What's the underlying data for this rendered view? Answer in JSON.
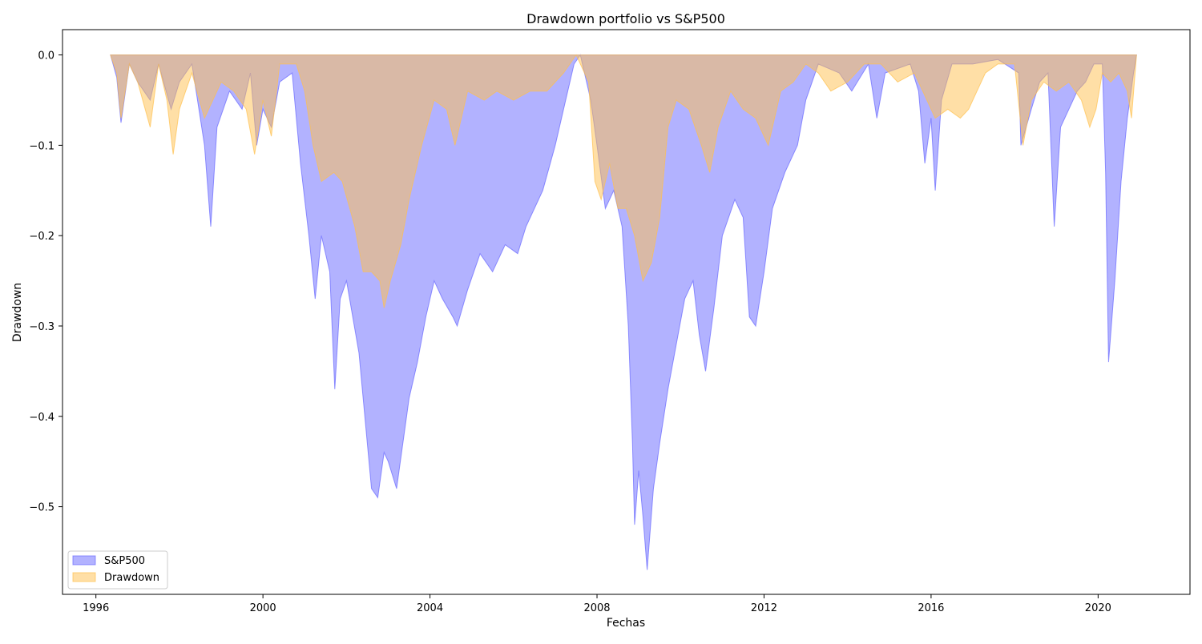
{
  "chart_data": {
    "type": "area",
    "title": "Drawdown portfolio vs S&P500",
    "xlabel": "Fechas",
    "ylabel": "Drawdown",
    "xlim": [
      1995.2,
      2022.2
    ],
    "ylim": [
      -0.597,
      0.028
    ],
    "x_ticks": [
      1996,
      2000,
      2004,
      2008,
      2012,
      2016,
      2020
    ],
    "x_tick_labels": [
      "1996",
      "2000",
      "2004",
      "2008",
      "2012",
      "2016",
      "2020"
    ],
    "y_ticks": [
      0.0,
      -0.1,
      -0.2,
      -0.3,
      -0.4,
      -0.5
    ],
    "y_tick_labels": [
      "0.0",
      "−0.1",
      "−0.2",
      "−0.3",
      "−0.4",
      "−0.5"
    ],
    "grid": false,
    "legend_position": "lower-left",
    "series": [
      {
        "name": "S&P500",
        "color": "#6666ff",
        "points": [
          [
            1996.35,
            0.0
          ],
          [
            1996.5,
            -0.025
          ],
          [
            1996.6,
            -0.075
          ],
          [
            1996.8,
            -0.01
          ],
          [
            1997.0,
            -0.03
          ],
          [
            1997.3,
            -0.05
          ],
          [
            1997.5,
            -0.01
          ],
          [
            1997.8,
            -0.06
          ],
          [
            1998.0,
            -0.03
          ],
          [
            1998.3,
            -0.01
          ],
          [
            1998.6,
            -0.1
          ],
          [
            1998.75,
            -0.19
          ],
          [
            1998.9,
            -0.08
          ],
          [
            1999.2,
            -0.04
          ],
          [
            1999.5,
            -0.06
          ],
          [
            1999.7,
            -0.02
          ],
          [
            1999.85,
            -0.1
          ],
          [
            2000.0,
            -0.06
          ],
          [
            2000.2,
            -0.08
          ],
          [
            2000.4,
            -0.03
          ],
          [
            2000.7,
            -0.02
          ],
          [
            2000.9,
            -0.12
          ],
          [
            2001.1,
            -0.2
          ],
          [
            2001.25,
            -0.27
          ],
          [
            2001.4,
            -0.2
          ],
          [
            2001.6,
            -0.24
          ],
          [
            2001.72,
            -0.37
          ],
          [
            2001.85,
            -0.27
          ],
          [
            2002.0,
            -0.25
          ],
          [
            2002.3,
            -0.33
          ],
          [
            2002.5,
            -0.43
          ],
          [
            2002.6,
            -0.48
          ],
          [
            2002.75,
            -0.49
          ],
          [
            2002.9,
            -0.44
          ],
          [
            2003.0,
            -0.45
          ],
          [
            2003.2,
            -0.48
          ],
          [
            2003.35,
            -0.43
          ],
          [
            2003.5,
            -0.38
          ],
          [
            2003.7,
            -0.34
          ],
          [
            2003.9,
            -0.29
          ],
          [
            2004.1,
            -0.25
          ],
          [
            2004.3,
            -0.27
          ],
          [
            2004.55,
            -0.29
          ],
          [
            2004.65,
            -0.3
          ],
          [
            2004.9,
            -0.26
          ],
          [
            2005.2,
            -0.22
          ],
          [
            2005.5,
            -0.24
          ],
          [
            2005.8,
            -0.21
          ],
          [
            2006.1,
            -0.22
          ],
          [
            2006.3,
            -0.19
          ],
          [
            2006.5,
            -0.17
          ],
          [
            2006.7,
            -0.15
          ],
          [
            2007.0,
            -0.1
          ],
          [
            2007.25,
            -0.05
          ],
          [
            2007.45,
            -0.01
          ],
          [
            2007.6,
            0.0
          ],
          [
            2007.85,
            -0.05
          ],
          [
            2008.0,
            -0.1
          ],
          [
            2008.2,
            -0.17
          ],
          [
            2008.4,
            -0.15
          ],
          [
            2008.6,
            -0.19
          ],
          [
            2008.75,
            -0.3
          ],
          [
            2008.85,
            -0.43
          ],
          [
            2008.9,
            -0.52
          ],
          [
            2009.0,
            -0.46
          ],
          [
            2009.1,
            -0.51
          ],
          [
            2009.2,
            -0.57
          ],
          [
            2009.35,
            -0.48
          ],
          [
            2009.5,
            -0.43
          ],
          [
            2009.7,
            -0.37
          ],
          [
            2009.9,
            -0.32
          ],
          [
            2010.1,
            -0.27
          ],
          [
            2010.3,
            -0.25
          ],
          [
            2010.45,
            -0.31
          ],
          [
            2010.6,
            -0.35
          ],
          [
            2010.8,
            -0.28
          ],
          [
            2011.0,
            -0.2
          ],
          [
            2011.3,
            -0.16
          ],
          [
            2011.5,
            -0.18
          ],
          [
            2011.65,
            -0.29
          ],
          [
            2011.8,
            -0.3
          ],
          [
            2012.0,
            -0.24
          ],
          [
            2012.2,
            -0.17
          ],
          [
            2012.5,
            -0.13
          ],
          [
            2012.8,
            -0.1
          ],
          [
            2013.0,
            -0.05
          ],
          [
            2013.3,
            -0.01
          ],
          [
            2013.8,
            -0.02
          ],
          [
            2014.1,
            -0.04
          ],
          [
            2014.5,
            -0.01
          ],
          [
            2014.7,
            -0.07
          ],
          [
            2014.9,
            -0.02
          ],
          [
            2015.5,
            -0.01
          ],
          [
            2015.7,
            -0.04
          ],
          [
            2015.85,
            -0.12
          ],
          [
            2016.0,
            -0.07
          ],
          [
            2016.1,
            -0.15
          ],
          [
            2016.25,
            -0.05
          ],
          [
            2016.5,
            -0.01
          ],
          [
            2017.0,
            -0.01
          ],
          [
            2017.6,
            -0.005
          ],
          [
            2018.1,
            -0.02
          ],
          [
            2018.15,
            -0.1
          ],
          [
            2018.4,
            -0.06
          ],
          [
            2018.6,
            -0.03
          ],
          [
            2018.8,
            -0.02
          ],
          [
            2018.95,
            -0.19
          ],
          [
            2019.1,
            -0.08
          ],
          [
            2019.3,
            -0.06
          ],
          [
            2019.5,
            -0.04
          ],
          [
            2019.7,
            -0.03
          ],
          [
            2019.9,
            -0.01
          ],
          [
            2020.1,
            -0.01
          ],
          [
            2020.18,
            -0.13
          ],
          [
            2020.25,
            -0.34
          ],
          [
            2020.4,
            -0.25
          ],
          [
            2020.55,
            -0.14
          ],
          [
            2020.7,
            -0.07
          ],
          [
            2020.85,
            -0.02
          ],
          [
            2020.92,
            0.0
          ]
        ]
      },
      {
        "name": "Drawdown",
        "color": "#ffc04d",
        "points": [
          [
            1996.35,
            0.0
          ],
          [
            1996.5,
            -0.02
          ],
          [
            1996.6,
            -0.07
          ],
          [
            1996.8,
            -0.01
          ],
          [
            1997.0,
            -0.03
          ],
          [
            1997.3,
            -0.08
          ],
          [
            1997.5,
            -0.01
          ],
          [
            1997.7,
            -0.05
          ],
          [
            1997.85,
            -0.11
          ],
          [
            1998.0,
            -0.06
          ],
          [
            1998.3,
            -0.02
          ],
          [
            1998.6,
            -0.07
          ],
          [
            1998.8,
            -0.05
          ],
          [
            1999.0,
            -0.03
          ],
          [
            1999.3,
            -0.04
          ],
          [
            1999.6,
            -0.06
          ],
          [
            1999.8,
            -0.11
          ],
          [
            2000.0,
            -0.05
          ],
          [
            2000.2,
            -0.09
          ],
          [
            2000.4,
            -0.01
          ],
          [
            2000.8,
            -0.01
          ],
          [
            2001.0,
            -0.04
          ],
          [
            2001.2,
            -0.1
          ],
          [
            2001.4,
            -0.14
          ],
          [
            2001.7,
            -0.13
          ],
          [
            2001.9,
            -0.14
          ],
          [
            2002.2,
            -0.19
          ],
          [
            2002.4,
            -0.24
          ],
          [
            2002.6,
            -0.24
          ],
          [
            2002.8,
            -0.25
          ],
          [
            2002.9,
            -0.28
          ],
          [
            2003.05,
            -0.25
          ],
          [
            2003.3,
            -0.21
          ],
          [
            2003.5,
            -0.16
          ],
          [
            2003.8,
            -0.1
          ],
          [
            2004.1,
            -0.05
          ],
          [
            2004.4,
            -0.06
          ],
          [
            2004.6,
            -0.1
          ],
          [
            2004.9,
            -0.04
          ],
          [
            2005.3,
            -0.05
          ],
          [
            2005.6,
            -0.04
          ],
          [
            2006.0,
            -0.05
          ],
          [
            2006.4,
            -0.04
          ],
          [
            2006.8,
            -0.04
          ],
          [
            2007.2,
            -0.02
          ],
          [
            2007.5,
            0.0
          ],
          [
            2007.8,
            -0.03
          ],
          [
            2007.95,
            -0.14
          ],
          [
            2008.1,
            -0.16
          ],
          [
            2008.3,
            -0.12
          ],
          [
            2008.5,
            -0.17
          ],
          [
            2008.7,
            -0.17
          ],
          [
            2008.9,
            -0.2
          ],
          [
            2009.1,
            -0.25
          ],
          [
            2009.3,
            -0.23
          ],
          [
            2009.5,
            -0.18
          ],
          [
            2009.7,
            -0.08
          ],
          [
            2009.9,
            -0.05
          ],
          [
            2010.2,
            -0.06
          ],
          [
            2010.5,
            -0.1
          ],
          [
            2010.7,
            -0.13
          ],
          [
            2010.9,
            -0.08
          ],
          [
            2011.2,
            -0.04
          ],
          [
            2011.5,
            -0.06
          ],
          [
            2011.8,
            -0.07
          ],
          [
            2012.1,
            -0.1
          ],
          [
            2012.4,
            -0.04
          ],
          [
            2012.7,
            -0.03
          ],
          [
            2013.0,
            -0.01
          ],
          [
            2013.3,
            -0.02
          ],
          [
            2013.6,
            -0.04
          ],
          [
            2014.0,
            -0.03
          ],
          [
            2014.4,
            -0.01
          ],
          [
            2014.8,
            -0.01
          ],
          [
            2015.2,
            -0.03
          ],
          [
            2015.6,
            -0.02
          ],
          [
            2015.9,
            -0.05
          ],
          [
            2016.1,
            -0.07
          ],
          [
            2016.4,
            -0.06
          ],
          [
            2016.7,
            -0.07
          ],
          [
            2016.9,
            -0.06
          ],
          [
            2017.1,
            -0.04
          ],
          [
            2017.3,
            -0.02
          ],
          [
            2017.6,
            -0.01
          ],
          [
            2018.0,
            -0.01
          ],
          [
            2018.2,
            -0.1
          ],
          [
            2018.4,
            -0.05
          ],
          [
            2018.7,
            -0.03
          ],
          [
            2019.0,
            -0.04
          ],
          [
            2019.3,
            -0.03
          ],
          [
            2019.6,
            -0.05
          ],
          [
            2019.8,
            -0.08
          ],
          [
            2019.95,
            -0.06
          ],
          [
            2020.1,
            -0.02
          ],
          [
            2020.3,
            -0.03
          ],
          [
            2020.5,
            -0.02
          ],
          [
            2020.7,
            -0.04
          ],
          [
            2020.8,
            -0.07
          ],
          [
            2020.92,
            0.0
          ]
        ]
      }
    ]
  }
}
